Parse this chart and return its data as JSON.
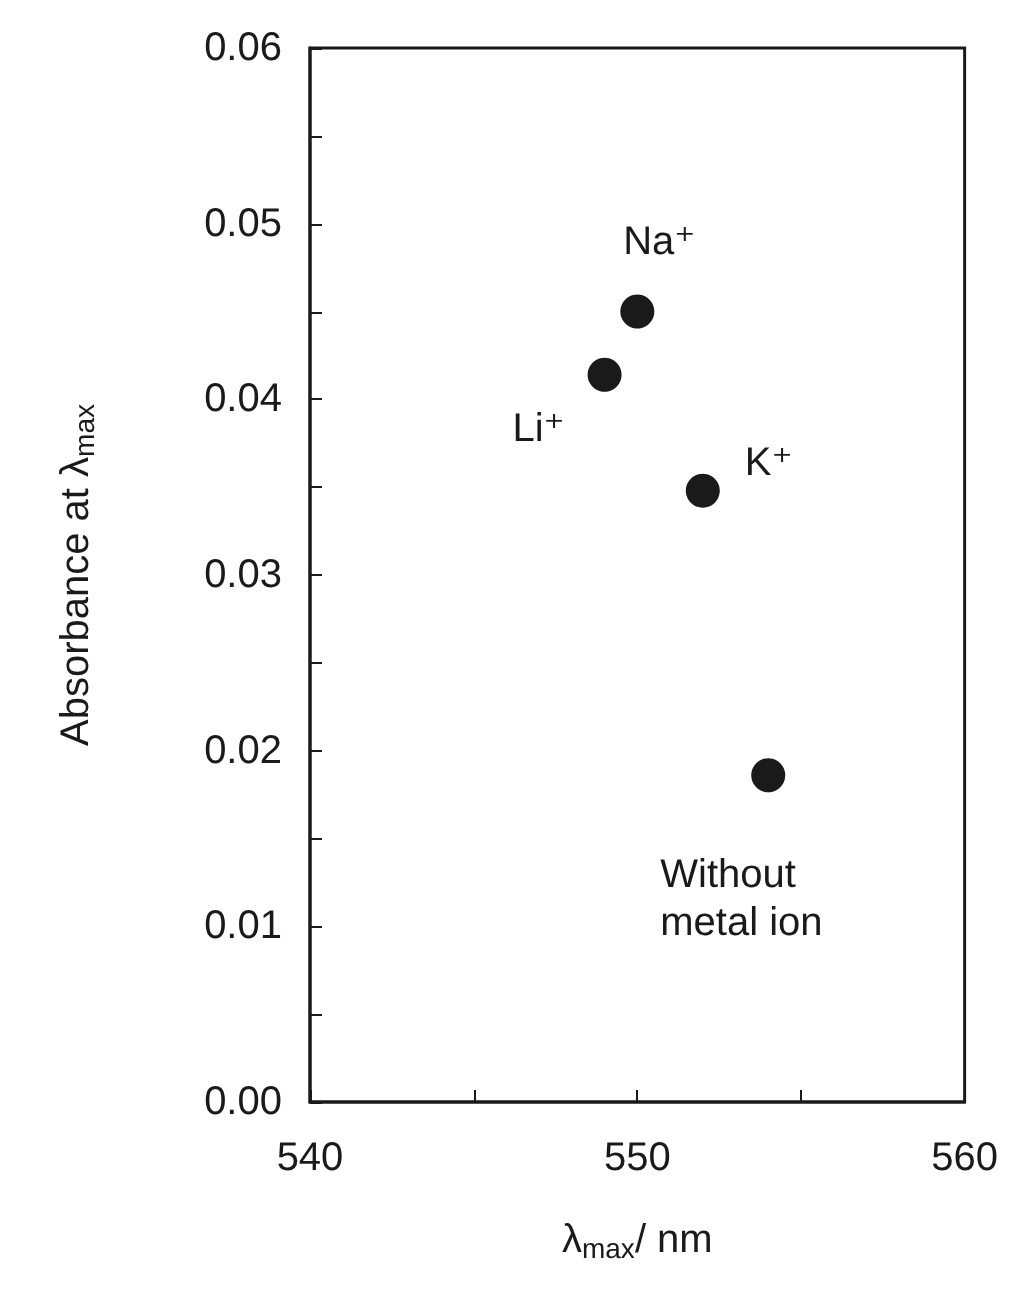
{
  "chart_data": {
    "type": "scatter",
    "xlabel": "λ$_{max}$/ nm",
    "ylabel": "Absorbance at λ$_{max}$",
    "x": [
      549,
      550,
      552,
      554
    ],
    "values": [
      0.0414,
      0.045,
      0.0348,
      0.0186
    ],
    "color": "#1a1a1a",
    "marker": "circle",
    "xlim": [
      540,
      560
    ],
    "xticks": [
      540,
      {
        "value": 545,
        "label": null
      },
      550,
      {
        "value": 555,
        "label": null
      },
      560
    ],
    "ylim": [
      0,
      0.06
    ],
    "yticks": [
      "0.00",
      {
        "value": 0.005,
        "label": null
      },
      {
        "value": 0.01,
        "label": "0.01"
      },
      {
        "value": 0.015,
        "label": null
      },
      {
        "value": 0.02,
        "label": "0.02"
      },
      {
        "value": 0.025,
        "label": null
      },
      {
        "value": 0.03,
        "label": "0.03"
      },
      {
        "value": 0.035,
        "label": null
      },
      {
        "value": 0.04,
        "label": "0.04"
      },
      {
        "value": 0.045,
        "label": null
      },
      {
        "value": 0.05,
        "label": "0.05"
      },
      {
        "value": 0.055,
        "label": null
      },
      {
        "value": 0.06,
        "label": "0.06"
      }
    ],
    "annotations": [
      {
        "text": "Li⁺",
        "x": 549,
        "y": 0.0414
      },
      {
        "text": "Na⁺",
        "x": 550,
        "y": 0.045
      },
      {
        "text": "K⁺",
        "x": 552,
        "y": 0.0348
      },
      {
        "text": "Without\nmetal ion",
        "x": 554,
        "y": 0.0186
      }
    ]
  }
}
